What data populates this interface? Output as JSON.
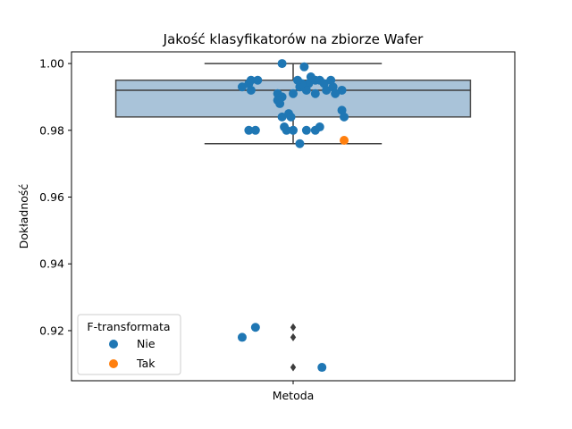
{
  "chart_data": {
    "type": "box-strip",
    "title": "Jakość klasyfikatorów na zbiorze Wafer",
    "xlabel": "",
    "ylabel": "Dokładność",
    "categories": [
      "Metoda"
    ],
    "ylim": [
      0.905,
      1.0035
    ],
    "yticks": [
      0.92,
      0.94,
      0.96,
      0.98,
      1.0
    ],
    "ytick_labels": [
      "0.92",
      "0.94",
      "0.96",
      "0.98",
      "1.00"
    ],
    "box": {
      "q1": 0.984,
      "median": 0.992,
      "q3": 0.995,
      "whisker_low": 0.976,
      "whisker_high": 1.0,
      "fill": "#a9c3d9",
      "edge": "#4d4d4d"
    },
    "outliers": [
      0.921,
      0.918,
      0.909
    ],
    "series": [
      {
        "name": "Nie",
        "color": "#1f77b4",
        "points": [
          {
            "x": -0.05,
            "y": 1.0
          },
          {
            "x": 0.05,
            "y": 0.999
          },
          {
            "x": -0.23,
            "y": 0.993
          },
          {
            "x": -0.2,
            "y": 0.994
          },
          {
            "x": -0.19,
            "y": 0.995
          },
          {
            "x": -0.16,
            "y": 0.995
          },
          {
            "x": -0.19,
            "y": 0.992
          },
          {
            "x": -0.07,
            "y": 0.991
          },
          {
            "x": -0.05,
            "y": 0.99
          },
          {
            "x": -0.07,
            "y": 0.989
          },
          {
            "x": -0.06,
            "y": 0.988
          },
          {
            "x": 0.0,
            "y": 0.991
          },
          {
            "x": 0.03,
            "y": 0.993
          },
          {
            "x": 0.05,
            "y": 0.993
          },
          {
            "x": 0.07,
            "y": 0.994
          },
          {
            "x": 0.08,
            "y": 0.996
          },
          {
            "x": 0.1,
            "y": 0.995
          },
          {
            "x": 0.12,
            "y": 0.995
          },
          {
            "x": 0.14,
            "y": 0.994
          },
          {
            "x": 0.06,
            "y": 0.992
          },
          {
            "x": 0.1,
            "y": 0.991
          },
          {
            "x": 0.15,
            "y": 0.992
          },
          {
            "x": 0.18,
            "y": 0.993
          },
          {
            "x": 0.22,
            "y": 0.992
          },
          {
            "x": 0.19,
            "y": 0.991
          },
          {
            "x": 0.17,
            "y": 0.995
          },
          {
            "x": 0.04,
            "y": 0.994
          },
          {
            "x": 0.02,
            "y": 0.995
          },
          {
            "x": -0.05,
            "y": 0.984
          },
          {
            "x": -0.02,
            "y": 0.985
          },
          {
            "x": -0.01,
            "y": 0.984
          },
          {
            "x": -0.04,
            "y": 0.981
          },
          {
            "x": -0.03,
            "y": 0.98
          },
          {
            "x": 0.0,
            "y": 0.98
          },
          {
            "x": 0.06,
            "y": 0.98
          },
          {
            "x": 0.1,
            "y": 0.98
          },
          {
            "x": 0.12,
            "y": 0.981
          },
          {
            "x": 0.03,
            "y": 0.976
          },
          {
            "x": -0.2,
            "y": 0.98
          },
          {
            "x": -0.17,
            "y": 0.98
          },
          {
            "x": 0.22,
            "y": 0.986
          },
          {
            "x": 0.23,
            "y": 0.984
          },
          {
            "x": -0.17,
            "y": 0.921
          },
          {
            "x": -0.23,
            "y": 0.918
          },
          {
            "x": 0.13,
            "y": 0.909
          }
        ]
      },
      {
        "name": "Tak",
        "color": "#ff7f0e",
        "points": [
          {
            "x": 0.23,
            "y": 0.977
          }
        ]
      }
    ],
    "legend": {
      "title": "F-transformata",
      "position": "lower-left",
      "entries": [
        "Nie",
        "Tak"
      ]
    },
    "grid": false
  }
}
